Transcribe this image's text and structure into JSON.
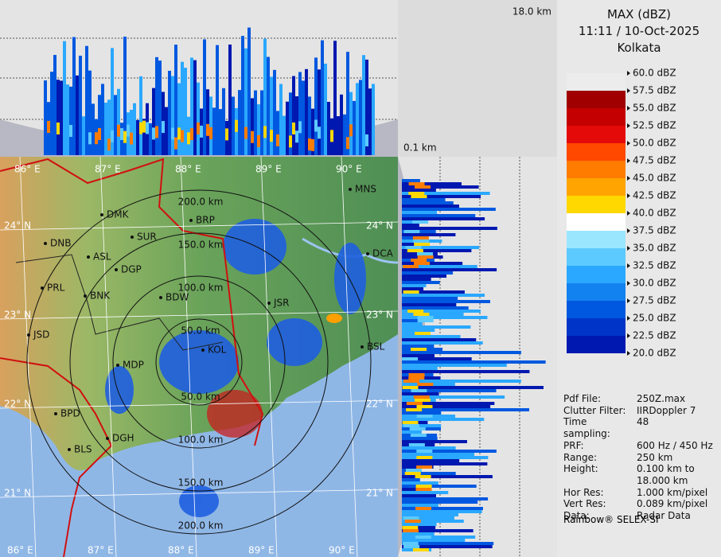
{
  "header": {
    "title": "MAX (dBZ)",
    "time": "11:11 / 10-Oct-2025",
    "location": "Kolkata"
  },
  "top_panel": {
    "height_label": "18.0 km"
  },
  "side_panel": {
    "height_label": "0.1 km"
  },
  "legend": {
    "labels": [
      "60.0 dBZ",
      "57.5 dBZ",
      "55.0 dBZ",
      "52.5 dBZ",
      "50.0 dBZ",
      "47.5 dBZ",
      "45.0 dBZ",
      "42.5 dBZ",
      "40.0 dBZ",
      "37.5 dBZ",
      "35.0 dBZ",
      "32.5 dBZ",
      "30.0 dBZ",
      "27.5 dBZ",
      "25.0 dBZ",
      "22.5 dBZ",
      "20.0 dBZ"
    ],
    "colors": [
      "#ececec",
      "#a00000",
      "#c40000",
      "#e40a0a",
      "#ff4800",
      "#ff7c00",
      "#ffa400",
      "#ffd800",
      "#ffffff",
      "#9ae6ff",
      "#5ccaff",
      "#2aa8ff",
      "#1282f0",
      "#0058e0",
      "#0034c8",
      "#0018b0"
    ]
  },
  "info": [
    {
      "key": "Pdf File:",
      "value": [
        "250Z.max"
      ]
    },
    {
      "key": "Clutter Filter:",
      "value": [
        "IIRDoppler 7"
      ]
    },
    {
      "key": "Time sampling:",
      "value": [
        "48"
      ]
    },
    {
      "key": "PRF:",
      "value": [
        "600 Hz / 450 Hz"
      ]
    },
    {
      "key": "Range:",
      "value": [
        "250 km"
      ]
    },
    {
      "key": "Height:",
      "value": [
        "0.100 km to",
        "18.000 km"
      ]
    },
    {
      "key": "Hor Res:",
      "value": [
        "1.000 km/pixel"
      ]
    },
    {
      "key": "Vert Res:",
      "value": [
        "0.089 km/pixel"
      ]
    },
    {
      "key": "Data:",
      "value": [
        "Radar Data"
      ]
    }
  ],
  "footer": "Rainbow® SELEX-SI",
  "map": {
    "longitudes": [
      "86° E",
      "87° E",
      "88° E",
      "89° E",
      "90° E"
    ],
    "latitudes": [
      "24° N",
      "23° N",
      "22° N",
      "21° N"
    ],
    "range_rings": [
      "50.0 km",
      "100.0 km",
      "150.0 km",
      "200.0 km"
    ],
    "stations": [
      "MNS",
      "BRP",
      "DMK",
      "SUR",
      "DNB",
      "ASL",
      "DGP",
      "PRL",
      "BNK",
      "BDW",
      "JSR",
      "DCA",
      "BSL",
      "JSD",
      "MDP",
      "BPD",
      "DGH",
      "BLS",
      "KOL"
    ]
  }
}
